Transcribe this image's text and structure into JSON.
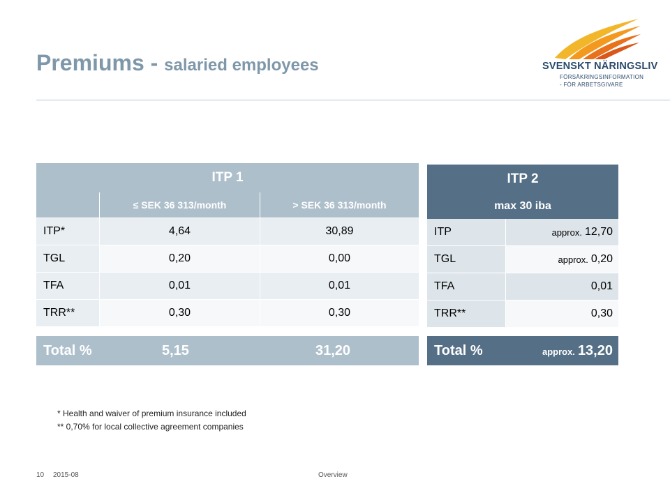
{
  "title": {
    "main": "Premiums - ",
    "sub": "salaried employees"
  },
  "logo": {
    "brand": "SVENSKT NÄRINGSLIV",
    "tagline_1": "FÖRSÄKRINGSINFORMATION",
    "tagline_2": "- FÖR ARBETSGIVARE"
  },
  "itp1": {
    "header": "ITP 1",
    "col_headers": [
      "≤ SEK 36 313/month",
      "> SEK 36 313/month"
    ],
    "rows": [
      {
        "label": "ITP*",
        "v1": "4,64",
        "v2": "30,89"
      },
      {
        "label": "TGL",
        "v1": "0,20",
        "v2": "0,00"
      },
      {
        "label": "TFA",
        "v1": "0,01",
        "v2": "0,01"
      },
      {
        "label": "TRR**",
        "v1": "0,30",
        "v2": "0,30"
      }
    ],
    "total": {
      "label": "Total %",
      "v1": "5,15",
      "v2": "31,20"
    }
  },
  "itp2": {
    "header": "ITP 2",
    "subheader": "max 30 iba",
    "rows": [
      {
        "label": "ITP",
        "prefix": "approx.",
        "value": "12,70"
      },
      {
        "label": "TGL",
        "prefix": "approx.",
        "value": "0,20"
      },
      {
        "label": "TFA",
        "prefix": "",
        "value": "0,01"
      },
      {
        "label": "TRR**",
        "prefix": "",
        "value": "0,30"
      }
    ],
    "total": {
      "label": "Total %",
      "prefix": "approx.",
      "value": "13,20"
    }
  },
  "notes": [
    "* Health and waiver of premium insurance included",
    "** 0,70% for local collective agreement companies"
  ],
  "footer": {
    "page": "10",
    "date": "2015-08",
    "section": "Overview"
  }
}
